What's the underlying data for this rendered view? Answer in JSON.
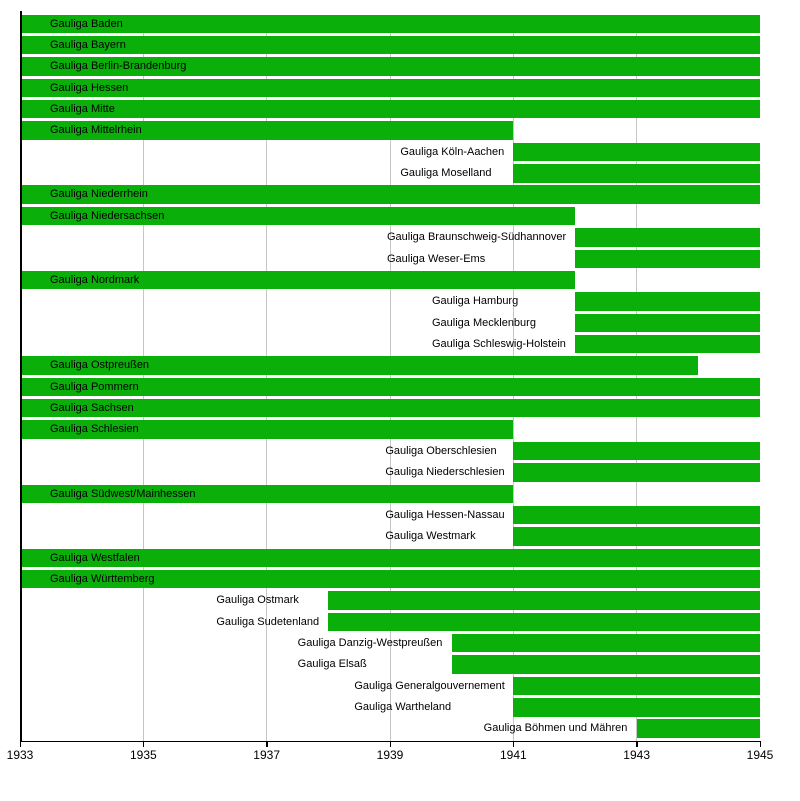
{
  "chart_data": {
    "type": "bar",
    "subtype": "gantt-timeline",
    "title": "",
    "xlabel": "",
    "ylabel": "",
    "bar_color": "#0aaf0a",
    "gridline_color": "#c6c6c6",
    "axis_color": "#000000",
    "x_axis": {
      "range": [
        1933,
        1945
      ],
      "ticks": [
        1933,
        1935,
        1937,
        1939,
        1941,
        1943,
        1945
      ],
      "tick_labels": [
        "1933",
        "1935",
        "1937",
        "1939",
        "1941",
        "1943",
        "1945"
      ],
      "gridline_years": [
        1935,
        1937,
        1939,
        1941,
        1943
      ]
    },
    "rows": [
      {
        "label": "Gauliga Baden",
        "start": 1933,
        "end": 1945,
        "label_position": "inside",
        "group": null
      },
      {
        "label": "Gauliga Bayern",
        "start": 1933,
        "end": 1945,
        "label_position": "inside",
        "group": null
      },
      {
        "label": "Gauliga Berlin-Brandenburg",
        "start": 1933,
        "end": 1945,
        "label_position": "inside",
        "group": null
      },
      {
        "label": "Gauliga Hessen",
        "start": 1933,
        "end": 1945,
        "label_position": "inside",
        "group": null
      },
      {
        "label": "Gauliga Mitte",
        "start": 1933,
        "end": 1945,
        "label_position": "inside",
        "group": null
      },
      {
        "label": "Gauliga Mittelrhein",
        "start": 1933,
        "end": 1941,
        "label_position": "inside",
        "group": null
      },
      {
        "label": "Gauliga Köln-Aachen",
        "start": 1941,
        "end": 1945,
        "label_position": "before",
        "group": "koeln"
      },
      {
        "label": "Gauliga Moselland",
        "start": 1941,
        "end": 1945,
        "label_position": "before",
        "group": "koeln"
      },
      {
        "label": "Gauliga Niederrhein",
        "start": 1933,
        "end": 1945,
        "label_position": "inside",
        "group": null
      },
      {
        "label": "Gauliga Niedersachsen",
        "start": 1933,
        "end": 1942,
        "label_position": "inside",
        "group": null
      },
      {
        "label": "Gauliga Braunschweig-Südhannover",
        "start": 1942,
        "end": 1945,
        "label_position": "before",
        "group": "niedersachsen-split"
      },
      {
        "label": "Gauliga Weser-Ems",
        "start": 1942,
        "end": 1945,
        "label_position": "before",
        "group": "niedersachsen-split"
      },
      {
        "label": "Gauliga Nordmark",
        "start": 1933,
        "end": 1942,
        "label_position": "inside",
        "group": null
      },
      {
        "label": "Gauliga Hamburg",
        "start": 1942,
        "end": 1945,
        "label_position": "before",
        "group": "nordmark-split"
      },
      {
        "label": "Gauliga Mecklenburg",
        "start": 1942,
        "end": 1945,
        "label_position": "before",
        "group": "nordmark-split"
      },
      {
        "label": "Gauliga Schleswig-Holstein",
        "start": 1942,
        "end": 1945,
        "label_position": "before",
        "group": "nordmark-split"
      },
      {
        "label": "Gauliga Ostpreußen",
        "start": 1933,
        "end": 1944,
        "label_position": "inside",
        "group": null
      },
      {
        "label": "Gauliga Pommern",
        "start": 1933,
        "end": 1945,
        "label_position": "inside",
        "group": null
      },
      {
        "label": "Gauliga Sachsen",
        "start": 1933,
        "end": 1945,
        "label_position": "inside",
        "group": null
      },
      {
        "label": "Gauliga Schlesien",
        "start": 1933,
        "end": 1941,
        "label_position": "inside",
        "group": null
      },
      {
        "label": "Gauliga Oberschlesien",
        "start": 1941,
        "end": 1945,
        "label_position": "before",
        "group": "schlesien-split"
      },
      {
        "label": "Gauliga Niederschlesien",
        "start": 1941,
        "end": 1945,
        "label_position": "before",
        "group": "schlesien-split"
      },
      {
        "label": "Gauliga Südwest/Mainhessen",
        "start": 1933,
        "end": 1941,
        "label_position": "inside",
        "group": null
      },
      {
        "label": "Gauliga Hessen-Nassau",
        "start": 1941,
        "end": 1945,
        "label_position": "before",
        "group": "suedwest-split"
      },
      {
        "label": "Gauliga Westmark",
        "start": 1941,
        "end": 1945,
        "label_position": "before",
        "group": "suedwest-split"
      },
      {
        "label": "Gauliga Westfalen",
        "start": 1933,
        "end": 1945,
        "label_position": "inside",
        "group": null
      },
      {
        "label": "Gauliga Württemberg",
        "start": 1933,
        "end": 1945,
        "label_position": "inside",
        "group": null
      },
      {
        "label": "Gauliga Ostmark",
        "start": 1938,
        "end": 1945,
        "label_position": "before",
        "group": "ostmark"
      },
      {
        "label": "Gauliga Sudetenland",
        "start": 1938,
        "end": 1945,
        "label_position": "before",
        "group": "ostmark"
      },
      {
        "label": "Gauliga Danzig-Westpreußen",
        "start": 1940,
        "end": 1945,
        "label_position": "before",
        "group": "danzig"
      },
      {
        "label": "Gauliga Elsaß",
        "start": 1940,
        "end": 1945,
        "label_position": "before",
        "group": "danzig"
      },
      {
        "label": "Gauliga Generalgouvernement",
        "start": 1941,
        "end": 1945,
        "label_position": "before",
        "group": "gg"
      },
      {
        "label": "Gauliga Wartheland",
        "start": 1941,
        "end": 1945,
        "label_position": "before",
        "group": "gg"
      },
      {
        "label": "Gauliga Böhmen und Mähren",
        "start": 1943,
        "end": 1945,
        "label_position": "before",
        "group": "boehmen"
      }
    ]
  }
}
